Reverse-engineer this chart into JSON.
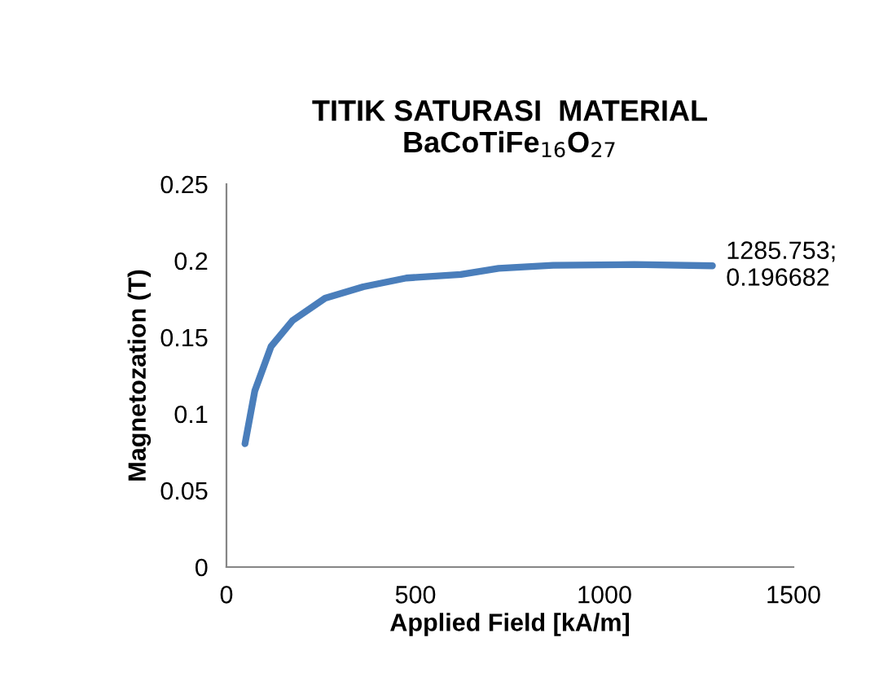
{
  "chart_data": {
    "type": "line",
    "title": "TITIK SATURASI  MATERIAL\nBaCoTiFe$_{16}$O$_{27}$",
    "xlabel": "Applied Field [kA/m]",
    "ylabel": "Magnetozation (T)",
    "series": [
      {
        "color": "#4a7ebb",
        "x": [
          49,
          75,
          118,
          175,
          261,
          362,
          476,
          620,
          720,
          864,
          1079,
          1285.753
        ],
        "values": [
          0.0805,
          0.115,
          0.144,
          0.161,
          0.1755,
          0.183,
          0.1887,
          0.191,
          0.195,
          0.197,
          0.1975,
          0.196682
        ]
      }
    ],
    "annotations": [
      {
        "text": "1285.753;\n0.196682",
        "x": 1285.753,
        "y": 0.196682
      }
    ],
    "xlim": [
      0,
      1500
    ],
    "xticks": [
      0,
      500,
      1000,
      1500
    ],
    "ylim": [
      0,
      0.25
    ],
    "yticks": [
      0,
      0.05,
      0.1,
      0.15,
      0.2,
      0.25
    ],
    "grid": false,
    "legend": false
  }
}
